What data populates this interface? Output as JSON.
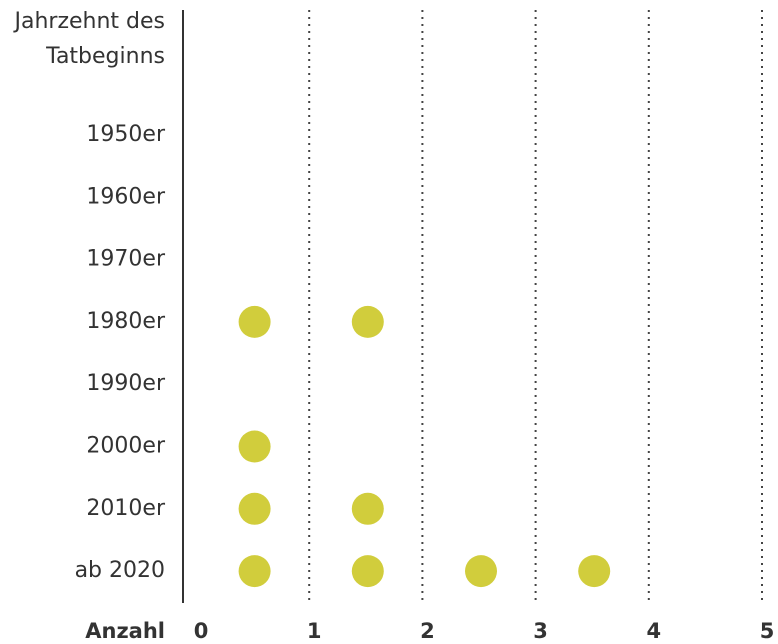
{
  "chart_data": {
    "type": "dot",
    "y_label": [
      "Jahrzehnt des",
      "Tatbeginns"
    ],
    "x_label": "Anzahl",
    "categories": [
      "1950er",
      "1960er",
      "1970er",
      "1980er",
      "1990er",
      "2000er",
      "2010er",
      "ab 2020"
    ],
    "values": [
      0,
      0,
      0,
      2,
      0,
      1,
      2,
      4
    ],
    "color": "#d1cd3c",
    "xlim": [
      0,
      5
    ],
    "xticks": [
      0,
      1,
      2,
      3,
      4,
      5
    ],
    "grid": true
  }
}
